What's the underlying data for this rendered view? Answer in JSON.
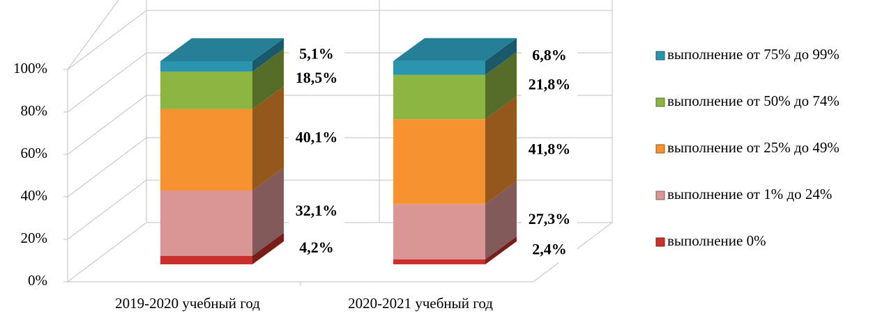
{
  "chart_data": {
    "type": "bar",
    "categories": [
      "2019-2020 учебный год",
      "2020-2021 учебный год"
    ],
    "series": [
      {
        "name": "выполнение 0%",
        "color": "#c9302c",
        "values": [
          4.2,
          2.4
        ],
        "value_labels": [
          "4,2%",
          "2,4%"
        ]
      },
      {
        "name": "выполнение от 1% до 24%",
        "color": "#d99694",
        "values": [
          32.1,
          27.3
        ],
        "value_labels": [
          "32,1%",
          "27,3%"
        ]
      },
      {
        "name": "выполнение от 25% до 49%",
        "color": "#f79230",
        "values": [
          40.1,
          41.8
        ],
        "value_labels": [
          "40,1%",
          "41,8%"
        ]
      },
      {
        "name": "выполнение от 50% до 74%",
        "color": "#8db542",
        "values": [
          18.5,
          21.8
        ],
        "value_labels": [
          "18,5%",
          "21,8%"
        ]
      },
      {
        "name": "выполнение от 75% до 99%",
        "color": "#2b95b0",
        "values": [
          5.1,
          6.8
        ],
        "value_labels": [
          "5,1%",
          "6,8%"
        ]
      }
    ],
    "ylim": [
      0,
      100
    ],
    "yticks": [
      {
        "value": 0,
        "label": "0%"
      },
      {
        "value": 20,
        "label": "20%"
      },
      {
        "value": 40,
        "label": "40%"
      },
      {
        "value": 60,
        "label": "60%"
      },
      {
        "value": 80,
        "label": "80%"
      },
      {
        "value": 100,
        "label": "100%"
      }
    ],
    "grid": true,
    "legend": "right"
  }
}
